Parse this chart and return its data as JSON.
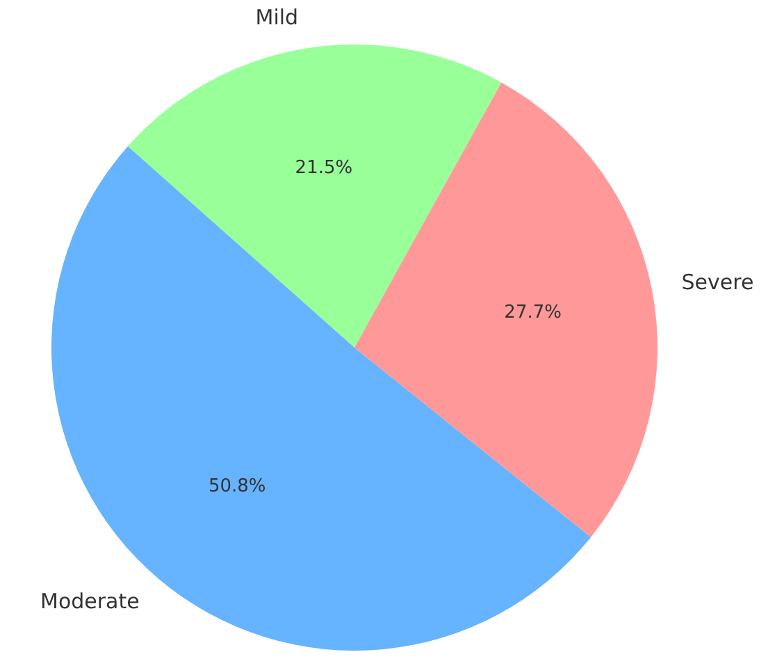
{
  "chart_data": {
    "type": "pie",
    "categories": [
      "Mild",
      "Moderate",
      "Severe"
    ],
    "values": [
      21.5,
      50.8,
      27.7
    ],
    "colors": [
      "#99ff99",
      "#66b3ff",
      "#ff9999"
    ],
    "value_labels": [
      "21.5%",
      "50.8%",
      "27.7%"
    ]
  }
}
